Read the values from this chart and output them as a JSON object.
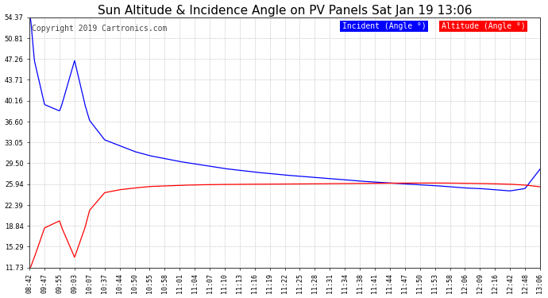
{
  "title": "Sun Altitude & Incidence Angle on PV Panels Sat Jan 19 13:06",
  "copyright": "Copyright 2019 Cartronics.com",
  "legend_incident": "Incident (Angle °)",
  "legend_altitude": "Altitude (Angle °)",
  "incident_color": "#0000ff",
  "altitude_color": "#ff0000",
  "background_color": "#ffffff",
  "plot_bg_color": "#ffffff",
  "grid_color": "#b0b0b0",
  "yticks": [
    11.73,
    15.29,
    18.84,
    22.39,
    25.94,
    29.5,
    33.05,
    36.6,
    40.16,
    43.71,
    47.26,
    50.81,
    54.37
  ],
  "xtick_labels": [
    "08:42",
    "09:47",
    "09:55",
    "09:03",
    "10:07",
    "10:37",
    "10:44",
    "10:50",
    "10:55",
    "10:58",
    "11:01",
    "11:04",
    "11:07",
    "11:10",
    "11:13",
    "11:16",
    "11:19",
    "11:22",
    "11:25",
    "11:28",
    "11:31",
    "11:34",
    "11:38",
    "11:41",
    "11:44",
    "11:47",
    "11:50",
    "11:53",
    "11:58",
    "12:06",
    "12:09",
    "12:16",
    "12:42",
    "12:48",
    "13:06"
  ],
  "ylim_min": 11.73,
  "ylim_max": 54.37,
  "title_fontsize": 11,
  "copyright_fontsize": 7,
  "tick_fontsize": 6,
  "legend_fontsize": 7
}
